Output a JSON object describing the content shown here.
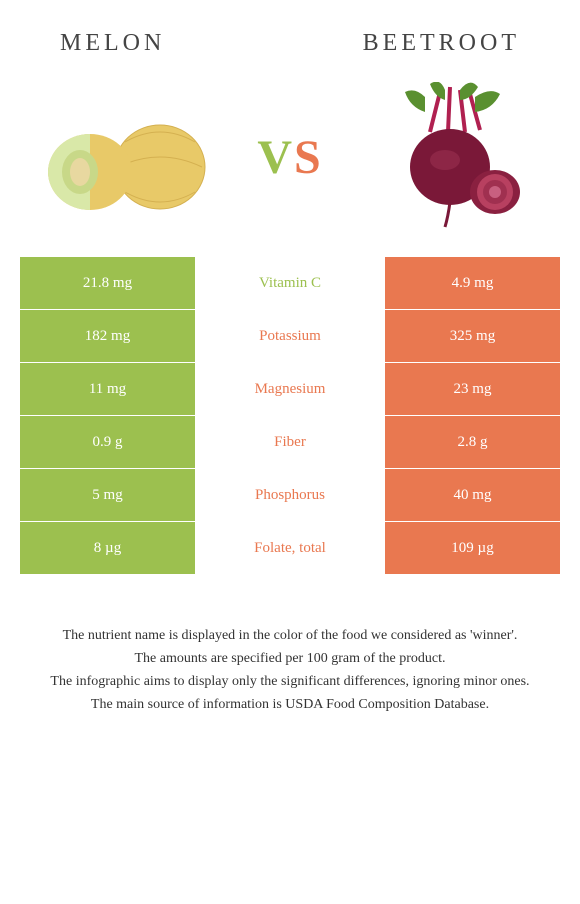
{
  "header": {
    "left_title": "Melon",
    "right_title": "Beetroot"
  },
  "vs": {
    "v": "V",
    "s": "S"
  },
  "colors": {
    "left": "#9cc04f",
    "right": "#e97850"
  },
  "rows": [
    {
      "left": "21.8 mg",
      "label": "Vitamin C",
      "right": "4.9 mg",
      "winner": "left"
    },
    {
      "left": "182 mg",
      "label": "Potassium",
      "right": "325 mg",
      "winner": "right"
    },
    {
      "left": "11 mg",
      "label": "Magnesium",
      "right": "23 mg",
      "winner": "right"
    },
    {
      "left": "0.9 g",
      "label": "Fiber",
      "right": "2.8 g",
      "winner": "right"
    },
    {
      "left": "5 mg",
      "label": "Phosphorus",
      "right": "40 mg",
      "winner": "right"
    },
    {
      "left": "8 µg",
      "label": "Folate, total",
      "right": "109 µg",
      "winner": "right"
    }
  ],
  "footer": {
    "line1": "The nutrient name is displayed in the color of the food we considered as 'winner'.",
    "line2": "The amounts are specified per 100 gram of the product.",
    "line3": "The infographic aims to display only the significant differences, ignoring minor ones.",
    "line4": "The main source of information is USDA Food Composition Database."
  }
}
